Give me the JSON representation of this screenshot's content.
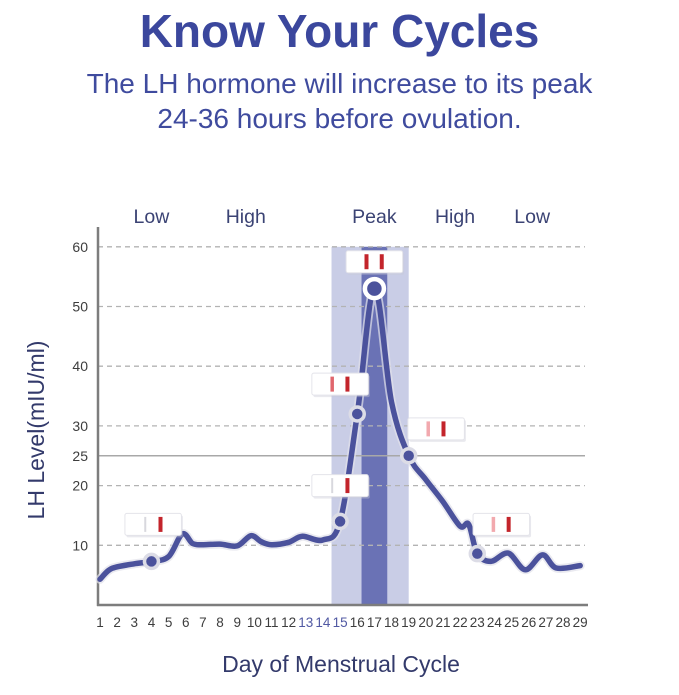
{
  "header": {
    "title": "Know Your Cycles",
    "subtitle_line1": "The LH hormone will increase to its peak",
    "subtitle_line2": "24-36 hours before ovulation."
  },
  "chart_data": {
    "type": "line",
    "title": "Know Your Cycles",
    "xlabel": "Day of Menstrual Cycle",
    "ylabel": "LH Level(mIU/ml)",
    "x_ticks": [
      1,
      2,
      3,
      4,
      5,
      6,
      7,
      8,
      9,
      10,
      11,
      12,
      13,
      14,
      15,
      16,
      17,
      18,
      19,
      20,
      21,
      22,
      23,
      24,
      25,
      26,
      27,
      28,
      29
    ],
    "x_tick_highlight": [
      13,
      14,
      15
    ],
    "y_ticks": [
      10,
      20,
      25,
      30,
      40,
      50,
      60
    ],
    "y_gridlines_dashed": [
      10,
      20,
      30,
      40,
      50,
      60
    ],
    "threshold_line": 25,
    "ylim": [
      0,
      63
    ],
    "grid": "dashed horizontal",
    "legend": "none",
    "phase_labels": [
      {
        "label": "Low",
        "day": 4
      },
      {
        "label": "High",
        "day": 9.5
      },
      {
        "label": "Peak",
        "day": 17
      },
      {
        "label": "High",
        "day": 21.7
      },
      {
        "label": "Low",
        "day": 26.2
      }
    ],
    "bands": {
      "light": {
        "from_day": 14.5,
        "to_day": 19.0,
        "from_value": 0,
        "to_value": 60
      },
      "dark": {
        "from_day": 16.25,
        "to_day": 17.75,
        "from_value": 0,
        "to_value": 60
      }
    },
    "series": [
      {
        "name": "LH level (mIU/ml)",
        "points": [
          [
            1,
            4.3
          ],
          [
            1.5,
            5.8
          ],
          [
            2,
            6.4
          ],
          [
            3,
            6.9
          ],
          [
            4,
            7.3
          ],
          [
            5,
            8.1
          ],
          [
            5.8,
            11.9
          ],
          [
            6.4,
            10.3
          ],
          [
            7,
            10.1
          ],
          [
            8,
            10.2
          ],
          [
            9,
            9.9
          ],
          [
            9.8,
            11.6
          ],
          [
            10.4,
            10.6
          ],
          [
            11,
            10.1
          ],
          [
            12,
            10.5
          ],
          [
            12.8,
            11.5
          ],
          [
            14,
            10.9
          ],
          [
            15,
            14
          ],
          [
            16,
            32
          ],
          [
            17,
            53
          ],
          [
            18,
            34
          ],
          [
            19,
            25
          ],
          [
            20,
            21
          ],
          [
            21,
            17.3
          ],
          [
            22,
            13.2
          ],
          [
            22.5,
            13.5
          ],
          [
            23,
            8.6
          ],
          [
            23.8,
            7.3
          ],
          [
            24.8,
            8.7
          ],
          [
            25.8,
            5.9
          ],
          [
            26.8,
            8.4
          ],
          [
            27.6,
            6.2
          ],
          [
            29,
            6.6
          ]
        ]
      }
    ],
    "markers": [
      [
        4,
        7.3
      ],
      [
        15,
        14
      ],
      [
        16,
        32
      ],
      [
        19,
        25
      ],
      [
        23,
        8.6
      ]
    ],
    "peak_marker": [
      17,
      53
    ],
    "test_strips": [
      {
        "day": 4.1,
        "value": 13.5,
        "lines": [
          "seam",
          "dark"
        ]
      },
      {
        "day": 15,
        "value": 20,
        "lines": [
          "seam",
          "dark"
        ]
      },
      {
        "day": 15,
        "value": 37,
        "lines": [
          "medium",
          "dark"
        ]
      },
      {
        "day": 17,
        "value": 57.5,
        "lines": [
          "dark",
          "dark"
        ]
      },
      {
        "day": 20.6,
        "value": 29.5,
        "lines": [
          "light",
          "dark"
        ]
      },
      {
        "day": 24.4,
        "value": 13.5,
        "lines": [
          "light",
          "dark"
        ]
      }
    ],
    "colors": {
      "title_text": "#3b479d",
      "subtitle_text": "#3f4b9e",
      "curve": "#4b529c",
      "curve_halo": "#e1e1ea",
      "band_light": "#c9cde6",
      "band_dark": "#6a72b5",
      "marker_fill": "#4b529c",
      "marker_halo": "#dcdce6",
      "peak_ring": "#ffffff",
      "grid": "#b3b3b3",
      "threshold": "#a8a8a8",
      "axis": "#7d7d7d",
      "tick_text": "#3d3d3d",
      "tick_text_highlight": "#5159a3",
      "phase_text": "#3b4374",
      "axis_title_text": "#333a6b",
      "strip_fill": "#ffffff",
      "strip_border": "#e4e4ea",
      "strip_shadow": "#c9c9d4",
      "strip_line_dark": "#c3242b",
      "strip_line_medium": "#e0666d",
      "strip_line_light": "#f2a9ae",
      "strip_seam": "#d8d8de"
    }
  }
}
